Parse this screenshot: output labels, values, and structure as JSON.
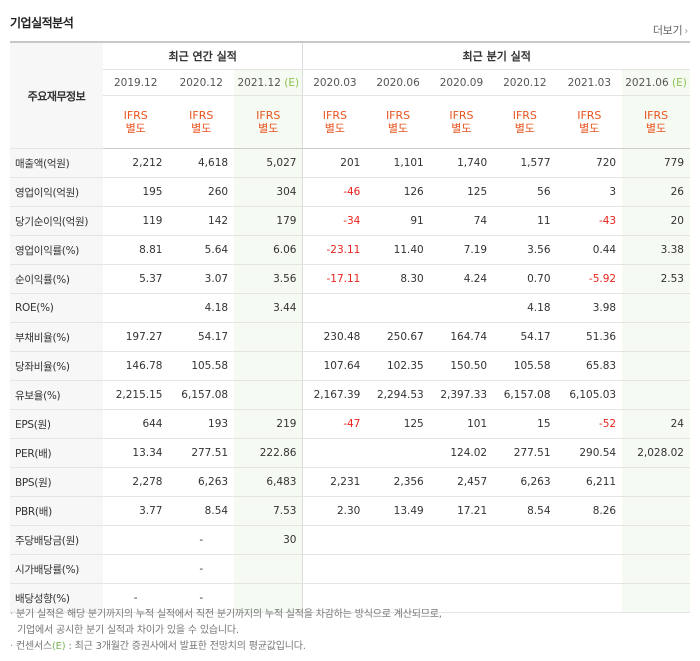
{
  "section": {
    "title": "기업실적분석",
    "more_label": "더보기",
    "more_chevron": "›"
  },
  "table": {
    "corner_label": "주요재무정보",
    "group_annual": "최근 연간 실적",
    "group_quarter": "최근 분기 실적",
    "periods": [
      {
        "label": "2019.12",
        "type_line1": "IFRS",
        "type_line2": "별도",
        "estimate": false
      },
      {
        "label": "2020.12",
        "type_line1": "IFRS",
        "type_line2": "별도",
        "estimate": false
      },
      {
        "label": "2021.12 (E)",
        "type_line1": "IFRS",
        "type_line2": "별도",
        "estimate": true
      },
      {
        "label": "2020.03",
        "type_line1": "IFRS",
        "type_line2": "별도",
        "estimate": false
      },
      {
        "label": "2020.06",
        "type_line1": "IFRS",
        "type_line2": "별도",
        "estimate": false
      },
      {
        "label": "2020.09",
        "type_line1": "IFRS",
        "type_line2": "별도",
        "estimate": false
      },
      {
        "label": "2020.12",
        "type_line1": "IFRS",
        "type_line2": "별도",
        "estimate": false
      },
      {
        "label": "2021.03",
        "type_line1": "IFRS",
        "type_line2": "별도",
        "estimate": false
      },
      {
        "label": "2021.06 (E)",
        "type_line1": "IFRS",
        "type_line2": "별도",
        "estimate": true
      }
    ],
    "rows": [
      {
        "label": "매출액(억원)",
        "values": [
          "2,212",
          "4,618",
          "5,027",
          "201",
          "1,101",
          "1,740",
          "1,577",
          "720",
          "779"
        ]
      },
      {
        "label": "영업이익(억원)",
        "values": [
          "195",
          "260",
          "304",
          "-46",
          "126",
          "125",
          "56",
          "3",
          "26"
        ]
      },
      {
        "label": "당기순이익(억원)",
        "values": [
          "119",
          "142",
          "179",
          "-34",
          "91",
          "74",
          "11",
          "-43",
          "20"
        ]
      },
      {
        "label": "영업이익률(%)",
        "values": [
          "8.81",
          "5.64",
          "6.06",
          "-23.11",
          "11.40",
          "7.19",
          "3.56",
          "0.44",
          "3.38"
        ]
      },
      {
        "label": "순이익률(%)",
        "values": [
          "5.37",
          "3.07",
          "3.56",
          "-17.11",
          "8.30",
          "4.24",
          "0.70",
          "-5.92",
          "2.53"
        ]
      },
      {
        "label": "ROE(%)",
        "values": [
          "",
          "4.18",
          "3.44",
          "",
          "",
          "",
          "4.18",
          "3.98",
          ""
        ]
      },
      {
        "label": "부채비율(%)",
        "values": [
          "197.27",
          "54.17",
          "",
          "230.48",
          "250.67",
          "164.74",
          "54.17",
          "51.36",
          ""
        ]
      },
      {
        "label": "당좌비율(%)",
        "values": [
          "146.78",
          "105.58",
          "",
          "107.64",
          "102.35",
          "150.50",
          "105.58",
          "65.83",
          ""
        ]
      },
      {
        "label": "유보율(%)",
        "values": [
          "2,215.15",
          "6,157.08",
          "",
          "2,167.39",
          "2,294.53",
          "2,397.33",
          "6,157.08",
          "6,105.03",
          ""
        ]
      },
      {
        "label": "EPS(원)",
        "values": [
          "644",
          "193",
          "219",
          "-47",
          "125",
          "101",
          "15",
          "-52",
          "24"
        ]
      },
      {
        "label": "PER(배)",
        "values": [
          "13.34",
          "277.51",
          "222.86",
          "",
          "",
          "124.02",
          "277.51",
          "290.54",
          "2,028.02"
        ]
      },
      {
        "label": "BPS(원)",
        "values": [
          "2,278",
          "6,263",
          "6,483",
          "2,231",
          "2,356",
          "2,457",
          "6,263",
          "6,211",
          ""
        ]
      },
      {
        "label": "PBR(배)",
        "values": [
          "3.77",
          "8.54",
          "7.53",
          "2.30",
          "13.49",
          "17.21",
          "8.54",
          "8.26",
          ""
        ]
      },
      {
        "label": "주당배당금(원)",
        "values": [
          "",
          "-",
          "30",
          "",
          "",
          "",
          "",
          "",
          ""
        ]
      },
      {
        "label": "시가배당률(%)",
        "values": [
          "",
          "-",
          "",
          "",
          "",
          "",
          "",
          "",
          ""
        ]
      },
      {
        "label": "배당성향(%)",
        "values": [
          "-",
          "-",
          "",
          "",
          "",
          "",
          "",
          "",
          ""
        ]
      }
    ]
  },
  "notes": {
    "line1": "분기 실적은 해당 분기까지의 누적 실적에서 직전 분기까지의 누적 실적을 차감하는 방식으로 계산되므로,",
    "line2": "기업에서 공시한 분기 실적과 차이가 있을 수 있습니다.",
    "line3_prefix": "컨센서스",
    "line3_tag": "(E)",
    "line3_rest": " : 최근 3개월간 증권사에서 발표한 전망치의 평균값입니다."
  },
  "colors": {
    "negative": "#e8241e",
    "ifrs": "#e8541e",
    "estimate_bg": "#f5faf3",
    "estimate_tag": "#8bc34a"
  }
}
